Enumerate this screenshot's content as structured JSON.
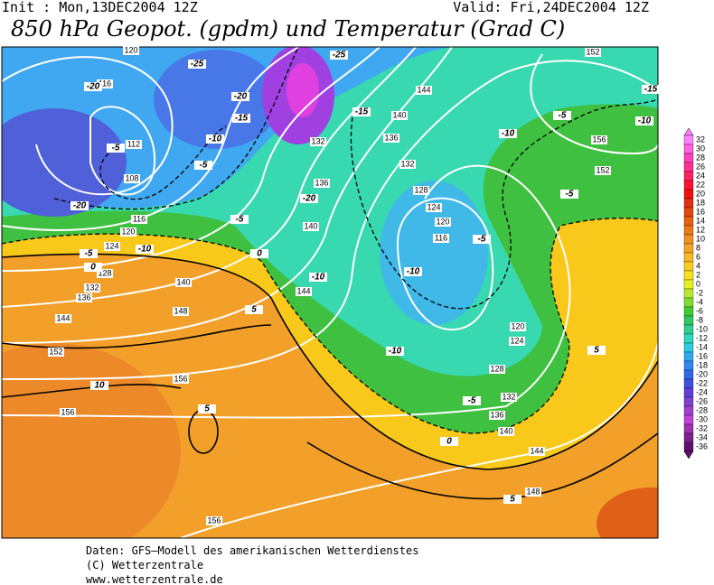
{
  "header": {
    "init": "Init : Mon,13DEC2004 12Z",
    "valid": "Valid: Fri,24DEC2004 12Z",
    "title": "850 hPa Geopot. (gpdm) und Temperatur (Grad C)"
  },
  "map": {
    "geopotential_labels": [
      120,
      116,
      112,
      108,
      116,
      120,
      124,
      128,
      132,
      136,
      140,
      144,
      148,
      152,
      156,
      156,
      156,
      132,
      136,
      140,
      144,
      144,
      140,
      136,
      132,
      128,
      124,
      120,
      116,
      120,
      124,
      128,
      132,
      136,
      140,
      144,
      148,
      152,
      156,
      152
    ],
    "temperature_labels": [
      -25,
      -25,
      -20,
      -20,
      -15,
      -10,
      -5,
      -5,
      -20,
      -20,
      -5,
      -10,
      -5,
      0,
      0,
      -10,
      5,
      10,
      5,
      -15,
      -10,
      -5,
      -10,
      -15,
      -5,
      -5,
      -10,
      -10,
      -5,
      0,
      5,
      5
    ]
  },
  "colorbar": {
    "levels": [
      32,
      30,
      28,
      26,
      24,
      22,
      20,
      18,
      16,
      14,
      12,
      10,
      8,
      6,
      4,
      2,
      0,
      -2,
      -4,
      -6,
      -8,
      -10,
      -12,
      -14,
      -16,
      -18,
      -20,
      -22,
      -24,
      -26,
      -28,
      -30,
      -32,
      -34,
      -36
    ],
    "colors": [
      "#ff80ff",
      "#ff60e0",
      "#ff40c0",
      "#ff3090",
      "#ff2060",
      "#ff1030",
      "#f01010",
      "#e03010",
      "#e04810",
      "#e86010",
      "#ec7818",
      "#f09020",
      "#f4a428",
      "#f8b828",
      "#f8cc20",
      "#f8e020",
      "#e8f020",
      "#b8e830",
      "#80dc30",
      "#40cc30",
      "#30c860",
      "#30d090",
      "#30d8c0",
      "#30c8e0",
      "#30a8f0",
      "#3088f0",
      "#3068e8",
      "#4050e0",
      "#6040d8",
      "#8040d0",
      "#a040d0",
      "#c040d8",
      "#a030b0",
      "#802090",
      "#601070"
    ]
  },
  "footer": {
    "lines": [
      "Daten: GFS—Modell des amerikanischen Wetterdienstes",
      "(C) Wetterzentrale",
      "www.wetterzentrale.de"
    ]
  }
}
